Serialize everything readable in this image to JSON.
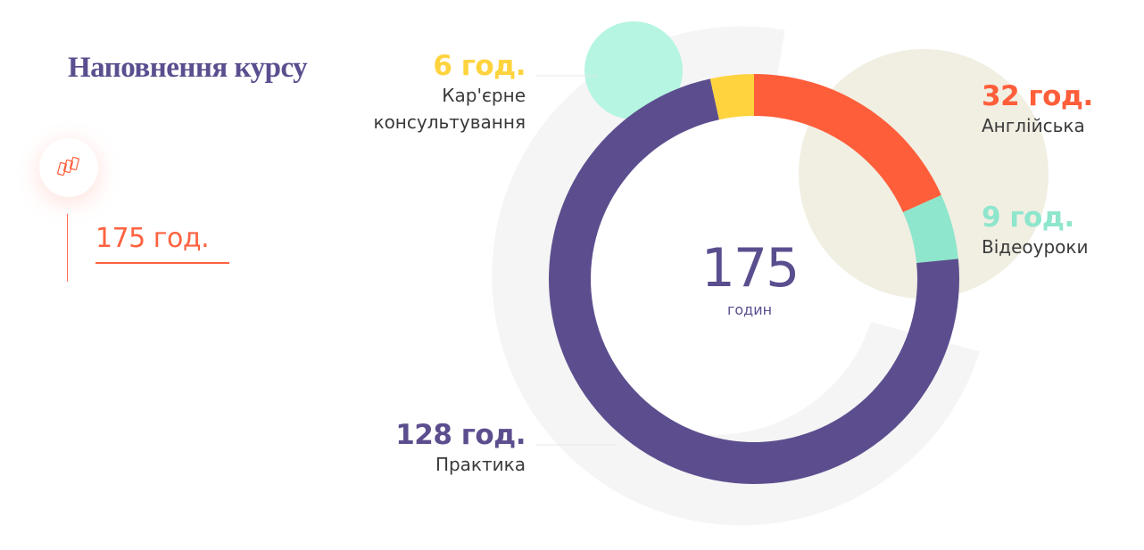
{
  "header": {
    "title": "Наповнення курсу"
  },
  "summary": {
    "total_label": "175 год.",
    "icon": "cards-icon"
  },
  "chart_data": {
    "type": "donut",
    "total": 175,
    "center_value": "175",
    "center_unit": "годин",
    "unit": "год.",
    "slices": [
      {
        "name": "Англійська",
        "value": 32,
        "label": "32 год.",
        "color": "#ff5e3a"
      },
      {
        "name": "Відеоуроки",
        "value": 9,
        "label": "9 год.",
        "color": "#8ee6cc"
      },
      {
        "name": "Практика",
        "value": 128,
        "label": "128 год.",
        "color": "#5c4e8e"
      },
      {
        "name": "Кар'єрне консультування",
        "name_lines": [
          "Кар'єрне",
          "консультування"
        ],
        "value": 6,
        "label": "6 год.",
        "color": "#ffd33d"
      }
    ]
  },
  "colors": {
    "title": "#5b4e8f",
    "accent": "#ff6240",
    "decor_mint": "#b5f5e2",
    "decor_beige": "#f1eee2",
    "decor_ring": "#f5f5f5"
  }
}
